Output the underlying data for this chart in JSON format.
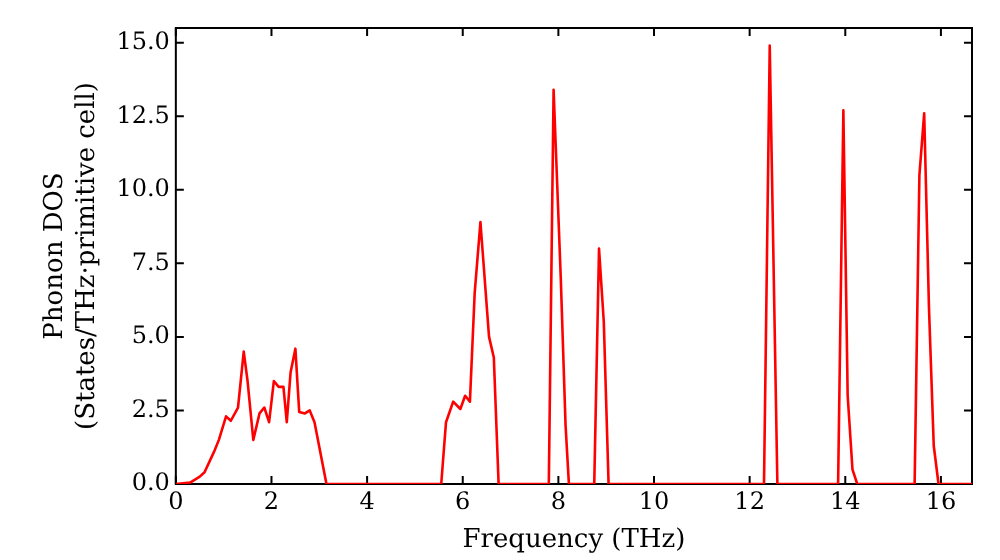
{
  "chart_data": {
    "type": "line",
    "xlabel": "Frequency (THz)",
    "ylabel": "Phonon DOS\n(States/THz·primitive cell)",
    "xlim": [
      0,
      16.65
    ],
    "xticks": [
      0,
      2,
      4,
      6,
      8,
      10,
      12,
      14,
      16
    ],
    "ylim": [
      0,
      15.5
    ],
    "yticks": [
      {
        "value": 0,
        "label": "0.0"
      },
      {
        "value": 2.5,
        "label": "2.5"
      },
      {
        "value": 5,
        "label": "5.0"
      },
      {
        "value": 7.5,
        "label": "7.5"
      },
      {
        "value": 10,
        "label": "10.0"
      },
      {
        "value": 12.5,
        "label": "12.5"
      },
      {
        "value": 15,
        "label": "15.0"
      }
    ],
    "grid": false,
    "legend": false,
    "marker": "none",
    "line_style": "solid",
    "series": [
      {
        "color": "#ff0000",
        "x": [
          0,
          0.3,
          0.5,
          0.6,
          0.8,
          0.9,
          1.05,
          1.15,
          1.3,
          1.42,
          1.5,
          1.62,
          1.75,
          1.85,
          1.95,
          2.05,
          2.15,
          2.25,
          2.32,
          2.4,
          2.5,
          2.58,
          2.7,
          2.8,
          2.9,
          3.15,
          5.55,
          5.65,
          5.8,
          5.95,
          6.05,
          6.15,
          6.25,
          6.37,
          6.55,
          6.65,
          6.75,
          7.8,
          7.9,
          8.05,
          8.15,
          8.22,
          8.75,
          8.85,
          8.95,
          9.05,
          12.3,
          12.42,
          12.58,
          13.85,
          13.96,
          14.05,
          14.15,
          14.25,
          15.45,
          15.55,
          15.65,
          15.75,
          15.85,
          15.95,
          16.65
        ],
        "values": [
          0,
          0.05,
          0.25,
          0.4,
          1.1,
          1.5,
          2.3,
          2.15,
          2.6,
          4.5,
          3.5,
          1.5,
          2.4,
          2.6,
          2.1,
          3.5,
          3.3,
          3.3,
          2.1,
          3.8,
          4.6,
          2.45,
          2.4,
          2.5,
          2.1,
          0,
          0,
          2.1,
          2.8,
          2.55,
          3.0,
          2.8,
          6.5,
          8.9,
          5.0,
          4.3,
          0,
          0,
          13.4,
          7.0,
          2,
          0,
          0,
          8.0,
          5.5,
          0,
          0,
          14.9,
          0,
          0,
          12.7,
          3.0,
          0.5,
          0,
          0,
          10.5,
          12.6,
          6,
          1.3,
          0,
          0
        ]
      }
    ]
  }
}
